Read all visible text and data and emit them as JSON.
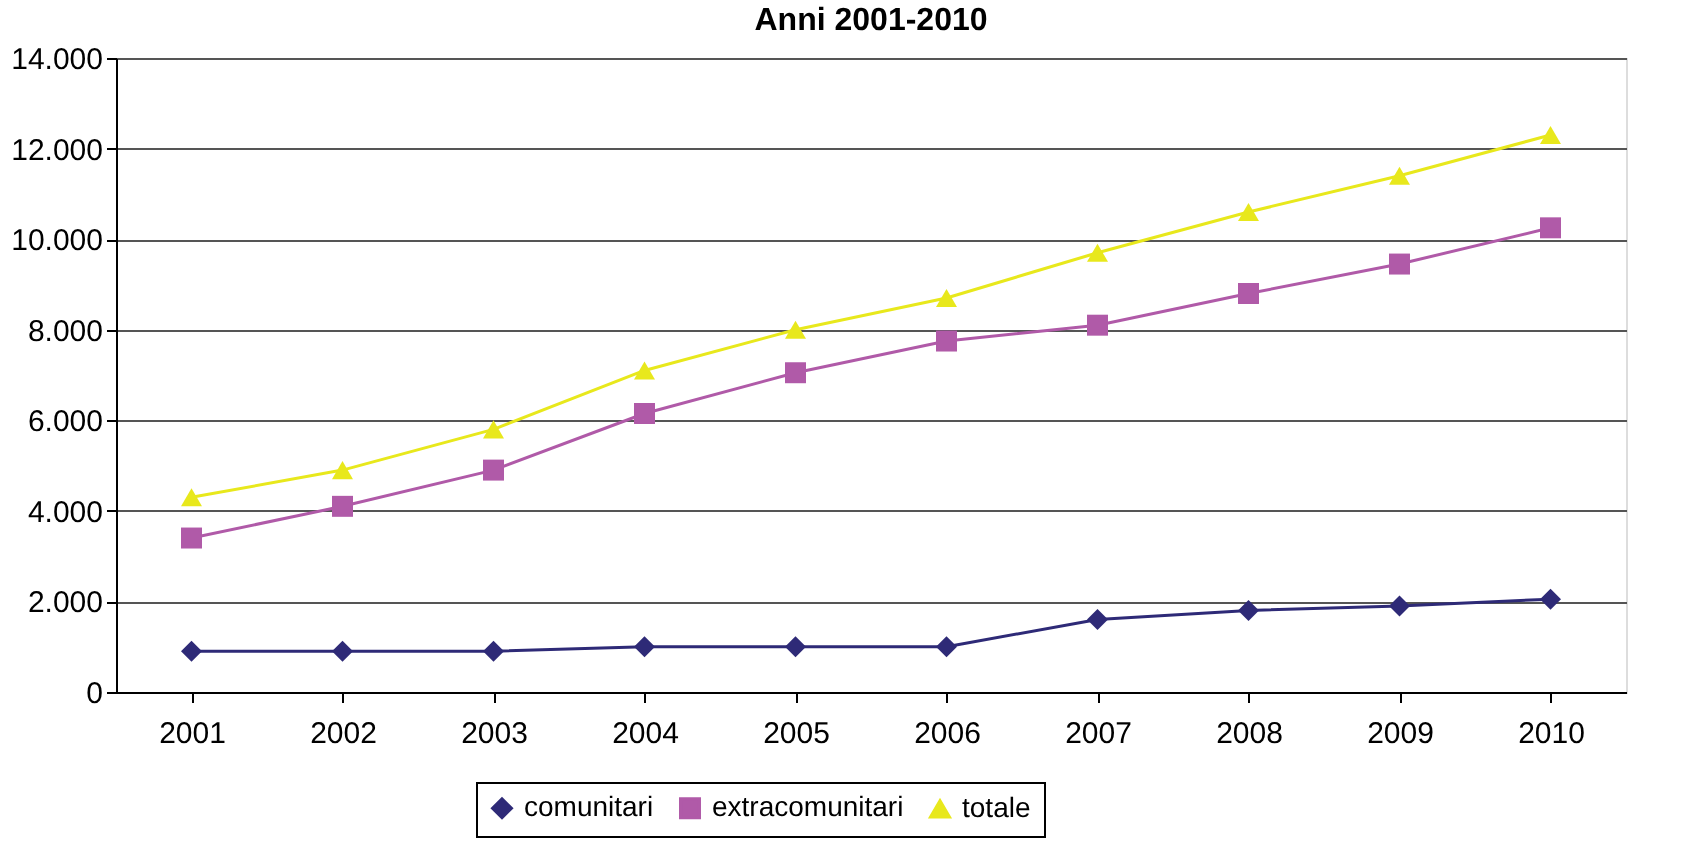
{
  "chart_data": {
    "type": "line",
    "title": "Anni 2001-2010",
    "categories": [
      "2001",
      "2002",
      "2003",
      "2004",
      "2005",
      "2006",
      "2007",
      "2008",
      "2009",
      "2010"
    ],
    "series": [
      {
        "name": "comunitari",
        "color": "#2e2a77",
        "marker": "diamond",
        "values": [
          900,
          900,
          900,
          1000,
          1000,
          1000,
          1600,
          1800,
          1900,
          2050
        ]
      },
      {
        "name": "extracomunitari",
        "color": "#b05aa8",
        "marker": "square",
        "values": [
          3400,
          4100,
          4900,
          6150,
          7050,
          7750,
          8100,
          8800,
          9450,
          10250
        ]
      },
      {
        "name": "totale",
        "color": "#e8e81c",
        "marker": "triangle",
        "values": [
          4300,
          4900,
          5800,
          7100,
          8000,
          8700,
          9700,
          10600,
          11400,
          12300
        ]
      }
    ],
    "ylim": [
      0,
      14000
    ],
    "yticks": [
      0,
      {
        "value": 2000,
        "label": "2.000"
      },
      {
        "value": 4000,
        "label": "4.000"
      },
      {
        "value": 6000,
        "label": "6.000"
      },
      {
        "value": 8000,
        "label": "8.000"
      },
      {
        "value": 10000,
        "label": "10.000"
      },
      {
        "value": 12000,
        "label": "12.000"
      },
      {
        "value": 14000,
        "label": "14.000"
      }
    ],
    "grid": "y",
    "legend": "bottom",
    "line_style": "solid"
  }
}
